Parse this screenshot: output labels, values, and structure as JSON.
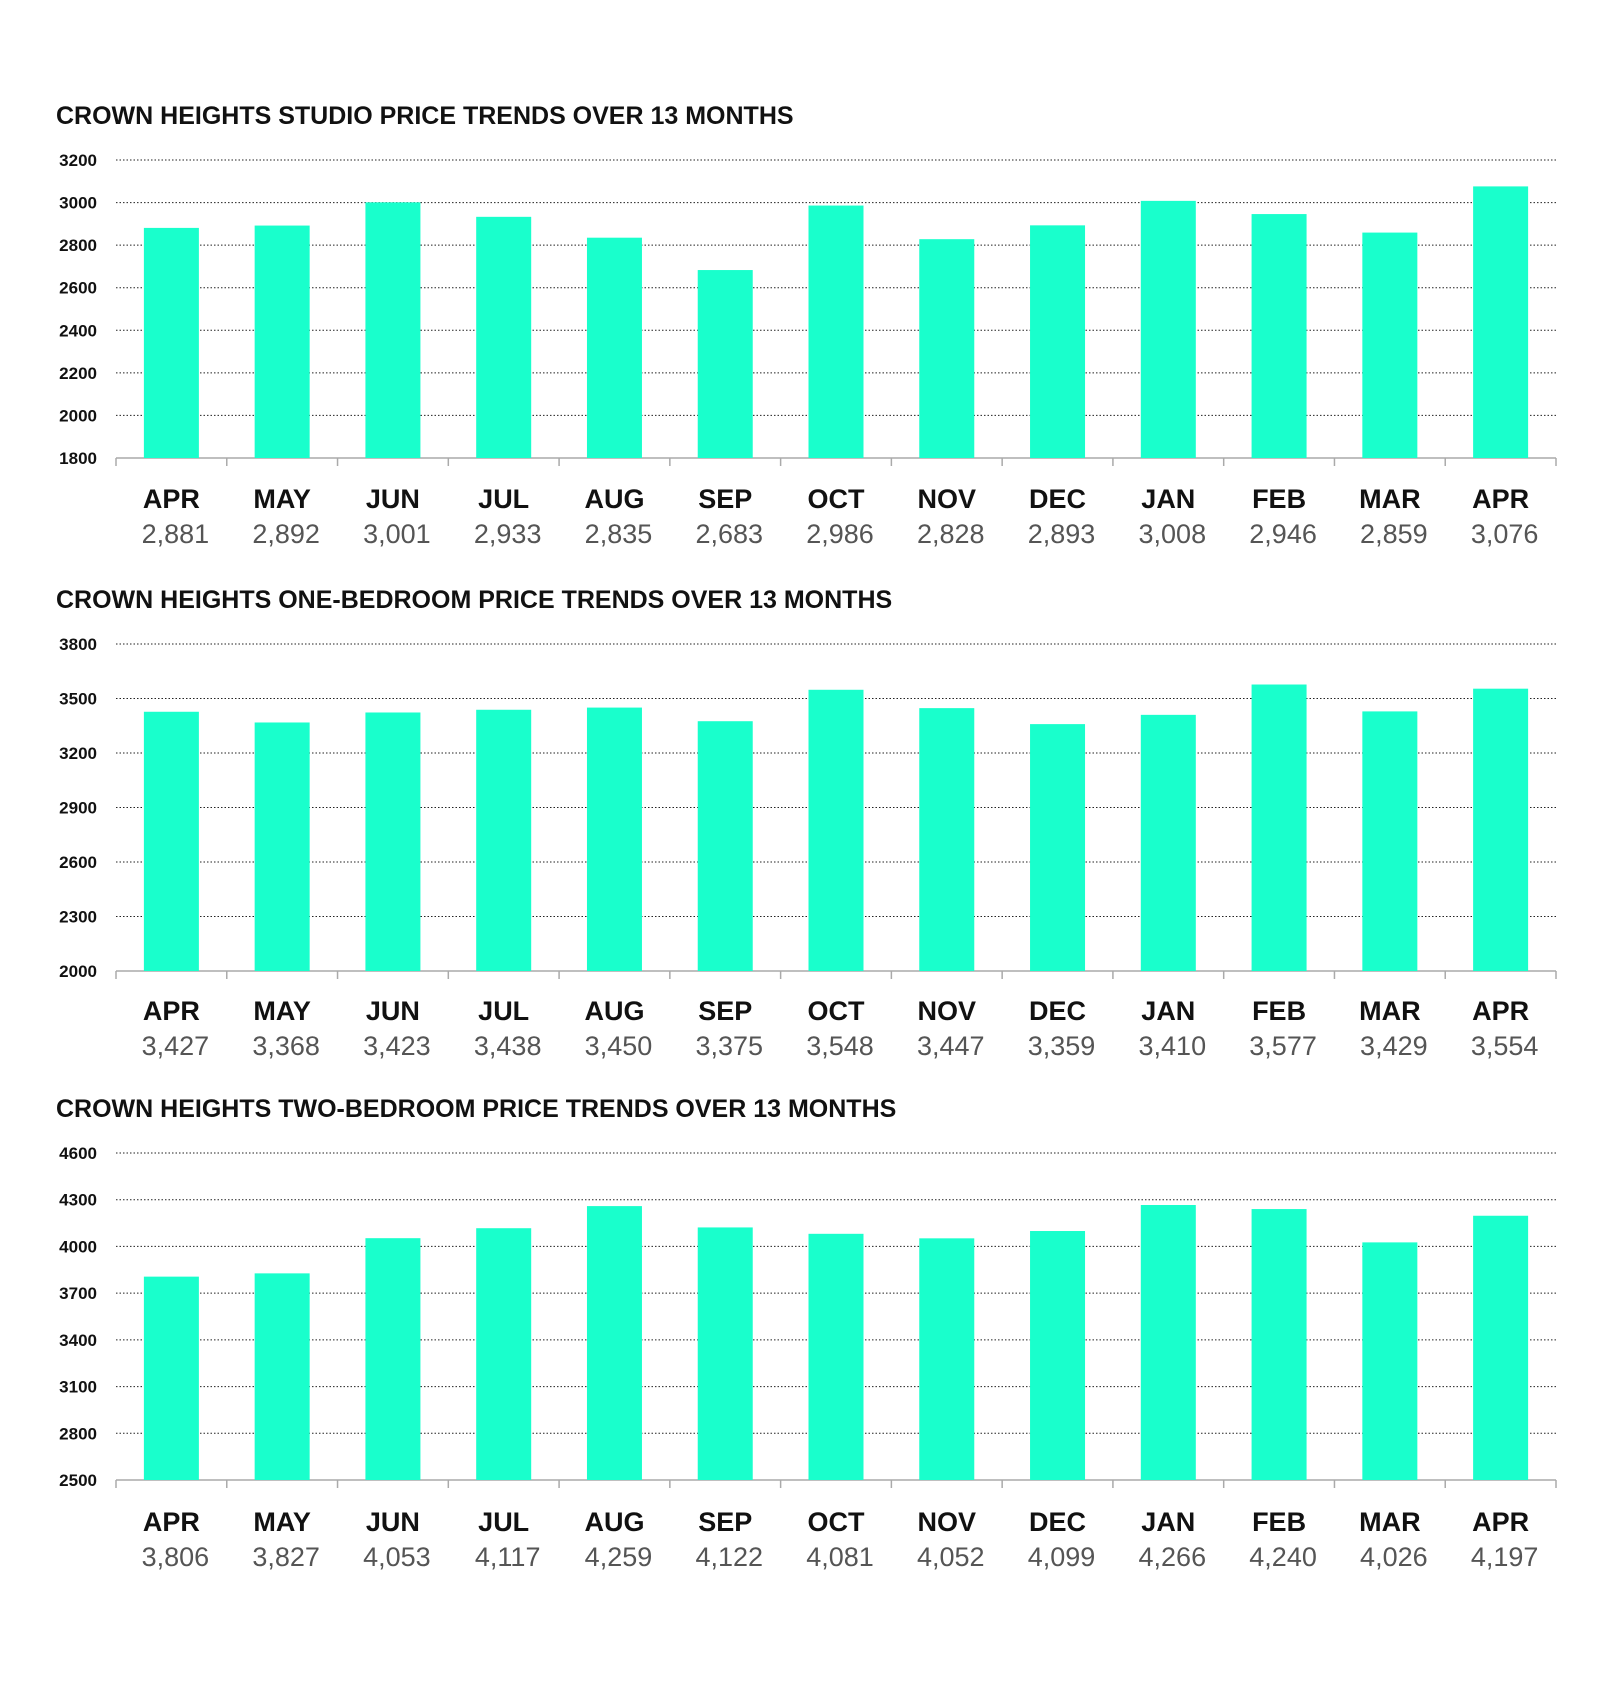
{
  "colors": {
    "bar": "#19FFCC",
    "grid": "#222222",
    "axis": "#aaaaaa"
  },
  "chart_data": [
    {
      "type": "bar",
      "title": "CROWN HEIGHTS STUDIO PRICE TRENDS OVER 13 MONTHS",
      "categories": [
        "APR",
        "MAY",
        "JUN",
        "JUL",
        "AUG",
        "SEP",
        "OCT",
        "NOV",
        "DEC",
        "JAN",
        "FEB",
        "MAR",
        "APR"
      ],
      "values": [
        2881,
        2892,
        3001,
        2933,
        2835,
        2683,
        2986,
        2828,
        2893,
        3008,
        2946,
        2859,
        3076
      ],
      "value_labels": [
        "2,881",
        "2,892",
        "3,001",
        "2,933",
        "2,835",
        "2,683",
        "2,986",
        "2,828",
        "2,893",
        "3,008",
        "2,946",
        "2,859",
        "3,076"
      ],
      "yticks": [
        "3200",
        "3000",
        "2800",
        "2600",
        "2400",
        "2200",
        "2000",
        "1800"
      ],
      "ylim": [
        1800,
        3200
      ],
      "ystep": 200,
      "grid": "dotted horizontal",
      "legend": "none"
    },
    {
      "type": "bar",
      "title": "CROWN HEIGHTS ONE-BEDROOM PRICE TRENDS OVER 13 MONTHS",
      "categories": [
        "APR",
        "MAY",
        "JUN",
        "JUL",
        "AUG",
        "SEP",
        "OCT",
        "NOV",
        "DEC",
        "JAN",
        "FEB",
        "MAR",
        "APR"
      ],
      "values": [
        3427,
        3368,
        3423,
        3438,
        3450,
        3375,
        3548,
        3447,
        3359,
        3410,
        3577,
        3429,
        3554
      ],
      "value_labels": [
        "3,427",
        "3,368",
        "3,423",
        "3,438",
        "3,450",
        "3,375",
        "3,548",
        "3,447",
        "3,359",
        "3,410",
        "3,577",
        "3,429",
        "3,554"
      ],
      "yticks": [
        "3800",
        "3500",
        "3200",
        "2900",
        "2600",
        "2300",
        "2000"
      ],
      "ylim": [
        2000,
        3800
      ],
      "ystep": 300,
      "grid": "dotted horizontal",
      "legend": "none"
    },
    {
      "type": "bar",
      "title": "CROWN HEIGHTS TWO-BEDROOM PRICE TRENDS OVER 13 MONTHS",
      "categories": [
        "APR",
        "MAY",
        "JUN",
        "JUL",
        "AUG",
        "SEP",
        "OCT",
        "NOV",
        "DEC",
        "JAN",
        "FEB",
        "MAR",
        "APR"
      ],
      "values": [
        3806,
        3827,
        4053,
        4117,
        4259,
        4122,
        4081,
        4052,
        4099,
        4266,
        4240,
        4026,
        4197
      ],
      "value_labels": [
        "3,806",
        "3,827",
        "4,053",
        "4,117",
        "4,259",
        "4,122",
        "4,081",
        "4,052",
        "4,099",
        "4,266",
        "4,240",
        "4,026",
        "4,197"
      ],
      "yticks": [
        "4600",
        "4300",
        "4000",
        "3700",
        "3400",
        "3100",
        "2800",
        "2500"
      ],
      "ylim": [
        2500,
        4600
      ],
      "ystep": 300,
      "grid": "dotted horizontal",
      "legend": "none"
    }
  ]
}
